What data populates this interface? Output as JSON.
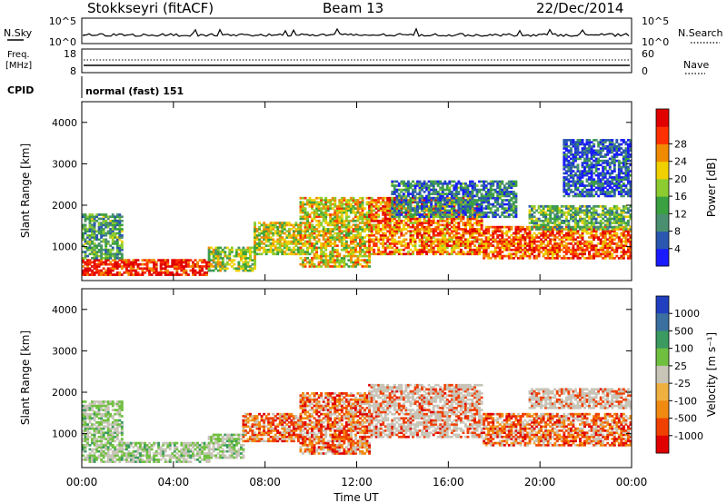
{
  "header": {
    "station": "Stokkseyri (fitACF)",
    "beam": "Beam 13",
    "date": "22/Dec/2014"
  },
  "noise_panel": {
    "left_label": "N.Sky",
    "left_ticks": [
      "10^5",
      "10^0"
    ],
    "right_label": "N.Search",
    "right_ticks": [
      "10^5",
      "10^0"
    ]
  },
  "freq_panel": {
    "left_label_1": "Freq.",
    "left_label_2": "[MHz]",
    "left_ticks": [
      "18",
      "8"
    ],
    "right_label": "Nave",
    "right_ticks": [
      "60",
      "0"
    ]
  },
  "cpid_panel": {
    "label": "CPID",
    "text": "normal (fast) 151"
  },
  "chart_data": [
    {
      "type": "heatmap",
      "name": "power",
      "xlabel": "Time UT",
      "ylabel": "Slant Range [km]",
      "ylim": [
        180,
        4500
      ],
      "x_ticks": [
        "00:00",
        "04:00",
        "08:00",
        "12:00",
        "16:00",
        "20:00",
        "00:00"
      ],
      "y_ticks": [
        1000,
        2000,
        3000,
        4000
      ],
      "colorbar": {
        "label": "Power [dB]",
        "ticks": [
          "4",
          "8",
          "12",
          "16",
          "20",
          "24",
          "28"
        ],
        "colors": [
          "#1a1aff",
          "#2a58b0",
          "#4a9070",
          "#3aa040",
          "#8ccc30",
          "#f0d000",
          "#f08a00",
          "#ff3000",
          "#e00000"
        ]
      },
      "bands": [
        {
          "t0": 0.0,
          "t1": 5.5,
          "r0": 300,
          "r1": 700,
          "level": 0.9
        },
        {
          "t0": 0.0,
          "t1": 1.8,
          "r0": 700,
          "r1": 1800,
          "level": 0.35
        },
        {
          "t0": 5.5,
          "t1": 7.5,
          "r0": 400,
          "r1": 1000,
          "level": 0.5
        },
        {
          "t0": 7.5,
          "t1": 9.5,
          "r0": 800,
          "r1": 1600,
          "level": 0.55
        },
        {
          "t0": 9.5,
          "t1": 12.5,
          "r0": 500,
          "r1": 2200,
          "level": 0.6
        },
        {
          "t0": 12.5,
          "t1": 17.5,
          "r0": 800,
          "r1": 2200,
          "level": 0.75
        },
        {
          "t0": 13.5,
          "t1": 19.0,
          "r0": 1700,
          "r1": 2600,
          "level": 0.25
        },
        {
          "t0": 17.5,
          "t1": 24.0,
          "r0": 700,
          "r1": 1500,
          "level": 0.8
        },
        {
          "t0": 19.5,
          "t1": 24.0,
          "r0": 1400,
          "r1": 2000,
          "level": 0.4
        },
        {
          "t0": 21.0,
          "t1": 24.0,
          "r0": 2200,
          "r1": 3600,
          "level": 0.15
        }
      ]
    },
    {
      "type": "heatmap",
      "name": "velocity",
      "xlabel": "Time UT",
      "ylabel": "Slant Range [km]",
      "ylim": [
        180,
        4500
      ],
      "x_ticks": [
        "00:00",
        "04:00",
        "08:00",
        "12:00",
        "16:00",
        "20:00",
        "00:00"
      ],
      "y_ticks": [
        1000,
        2000,
        3000,
        4000
      ],
      "colorbar": {
        "label": "Velocity [m s⁻¹]",
        "ticks": [
          "1000",
          "500",
          "100",
          "25",
          "-25",
          "-100",
          "-500",
          "-1000"
        ],
        "colors": [
          "#2040c0",
          "#3a70a0",
          "#3a9a60",
          "#70c040",
          "#c8c4b8",
          "#f0b040",
          "#f08a10",
          "#f04000",
          "#e00000"
        ]
      },
      "bands": [
        {
          "t0": 0.0,
          "t1": 5.5,
          "r0": 300,
          "r1": 800,
          "level": 0.3
        },
        {
          "t0": 0.0,
          "t1": 1.8,
          "r0": 800,
          "r1": 1800,
          "level": 0.3
        },
        {
          "t0": 5.5,
          "t1": 7.0,
          "r0": 400,
          "r1": 1000,
          "level": 0.35
        },
        {
          "t0": 7.0,
          "t1": 9.5,
          "r0": 800,
          "r1": 1500,
          "level": 0.7
        },
        {
          "t0": 9.5,
          "t1": 12.5,
          "r0": 500,
          "r1": 2000,
          "level": 0.72
        },
        {
          "t0": 12.5,
          "t1": 17.5,
          "r0": 900,
          "r1": 2200,
          "level": 0.5
        },
        {
          "t0": 17.5,
          "t1": 24.0,
          "r0": 700,
          "r1": 1500,
          "level": 0.75
        },
        {
          "t0": 19.5,
          "t1": 24.0,
          "r0": 1600,
          "r1": 2100,
          "level": 0.5
        }
      ]
    }
  ]
}
